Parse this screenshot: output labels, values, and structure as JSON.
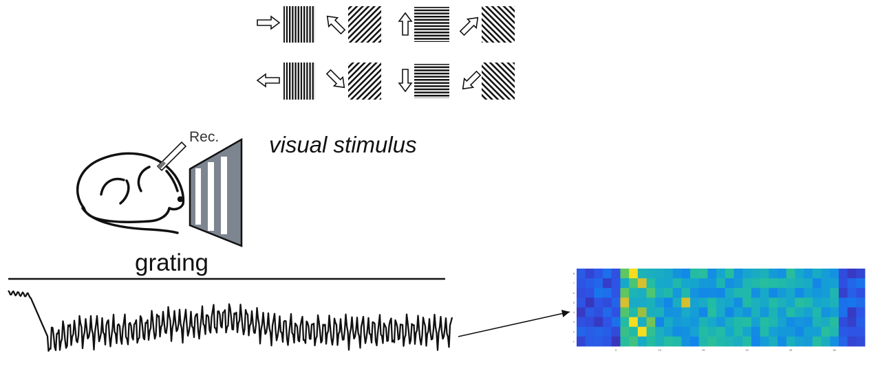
{
  "labels": {
    "rec": "Rec.",
    "stimulus": "visual stimulus",
    "grating": "grating"
  },
  "stimulus_panel": {
    "rows": [
      [
        {
          "arrow": "right-arrow",
          "grating": "vertical"
        },
        {
          "arrow": "up-left-arrow",
          "grating": "diagonal-up"
        },
        {
          "arrow": "up-arrow",
          "grating": "horizontal"
        },
        {
          "arrow": "up-right-arrow",
          "grating": "diagonal-down"
        }
      ],
      [
        {
          "arrow": "left-arrow",
          "grating": "vertical"
        },
        {
          "arrow": "down-right-arrow",
          "grating": "diagonal-up"
        },
        {
          "arrow": "down-arrow",
          "grating": "horizontal"
        },
        {
          "arrow": "down-left-arrow",
          "grating": "diagonal-down"
        }
      ]
    ]
  },
  "colors": {
    "ink": "#111111",
    "screen": "#7d8590",
    "heatmap_low": "#3e26a8",
    "heatmap_high": "#f9fb0e"
  },
  "heatmap": {
    "colormap": "parula",
    "x_ticks": [
      "5",
      "10",
      "15",
      "20",
      "25",
      "30"
    ],
    "y_ticks": [
      "8",
      "7",
      "6",
      "5",
      "4",
      "3",
      "2",
      "1"
    ]
  }
}
